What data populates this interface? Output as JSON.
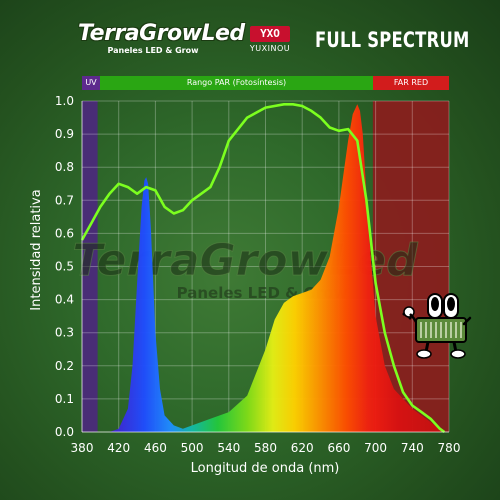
{
  "header": {
    "brand_name": "TerraGrowLed",
    "brand_tagline": "Paneles LED & Grow",
    "brand2_logo": "YXO",
    "brand2_name": "YUXINOU",
    "headline": "FULL SPECTRUM"
  },
  "bands": {
    "uv": "UV",
    "par": "Rango PAR (Fotosíntesis)",
    "far_red": "FAR RED"
  },
  "colors": {
    "uv_band": "#5d2a8e",
    "par_band": "#2aa613",
    "far_red_band": "#d21c1c",
    "curve": "#7cff1f",
    "far_red_fill": "#8b1d1d",
    "uv_fill": "#4b2a7a"
  },
  "watermark": {
    "name": "TerraGrowLed",
    "tagline": "Paneles LED & Grow"
  },
  "mascot_icon": "led-panel-mascot-icon",
  "chart_data": {
    "type": "line",
    "xlabel": "Longitud de onda (nm)",
    "ylabel": "Intensidad relativa",
    "xlim": [
      380,
      780
    ],
    "ylim": [
      0,
      1.0
    ],
    "x_ticks": [
      380,
      420,
      460,
      500,
      540,
      580,
      620,
      660,
      700,
      740,
      780
    ],
    "y_ticks": [
      0.0,
      0.1,
      0.2,
      0.3,
      0.4,
      0.5,
      0.6,
      0.7,
      0.8,
      0.9,
      1.0
    ],
    "y_tick_labels": [
      "0.0",
      "0.1",
      "0.2",
      "0.3",
      "0.4",
      "0.5",
      "0.6",
      "0.7",
      "0.8",
      "0.9",
      "1.0"
    ],
    "grid": true,
    "regions": [
      {
        "label": "UV",
        "x": [
          380,
          397
        ]
      },
      {
        "label": "Rango PAR (Fotosíntesis)",
        "x": [
          397,
          697
        ]
      },
      {
        "label": "FAR RED",
        "x": [
          697,
          780
        ]
      }
    ],
    "series": [
      {
        "kind": "spectrum",
        "x": [
          410,
          420,
          430,
          435,
          440,
          445,
          448,
          450,
          452,
          455,
          460,
          465,
          470,
          480,
          490,
          500,
          520,
          540,
          560,
          580,
          590,
          600,
          610,
          620,
          630,
          640,
          650,
          660,
          665,
          670,
          675,
          680,
          683,
          686,
          690,
          695,
          700,
          710,
          720,
          740,
          760,
          770,
          775
        ],
        "y": [
          0.0,
          0.01,
          0.07,
          0.2,
          0.45,
          0.68,
          0.76,
          0.77,
          0.75,
          0.62,
          0.3,
          0.13,
          0.05,
          0.02,
          0.01,
          0.02,
          0.04,
          0.06,
          0.11,
          0.25,
          0.34,
          0.39,
          0.41,
          0.42,
          0.43,
          0.46,
          0.53,
          0.68,
          0.78,
          0.88,
          0.96,
          0.99,
          0.97,
          0.9,
          0.72,
          0.52,
          0.35,
          0.2,
          0.13,
          0.07,
          0.03,
          0.01,
          0.0
        ]
      },
      {
        "kind": "envelope",
        "x": [
          380,
          390,
          400,
          410,
          420,
          430,
          440,
          445,
          450,
          460,
          470,
          480,
          490,
          500,
          510,
          520,
          530,
          540,
          560,
          580,
          600,
          610,
          620,
          630,
          640,
          650,
          660,
          670,
          680,
          690,
          700,
          710,
          720,
          730,
          740,
          750,
          760,
          770,
          775
        ],
        "y": [
          0.58,
          0.63,
          0.68,
          0.72,
          0.75,
          0.74,
          0.72,
          0.73,
          0.74,
          0.73,
          0.68,
          0.66,
          0.67,
          0.7,
          0.72,
          0.74,
          0.8,
          0.88,
          0.95,
          0.98,
          0.99,
          0.99,
          0.985,
          0.97,
          0.95,
          0.92,
          0.91,
          0.915,
          0.88,
          0.7,
          0.45,
          0.3,
          0.2,
          0.12,
          0.08,
          0.06,
          0.04,
          0.01,
          0.0
        ]
      }
    ]
  }
}
